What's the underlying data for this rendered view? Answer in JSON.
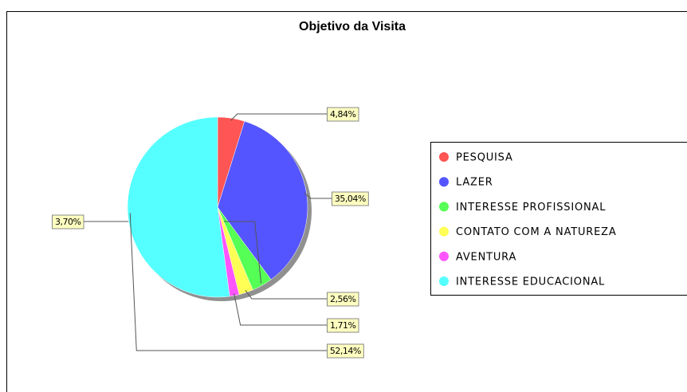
{
  "chart_data": {
    "type": "pie",
    "title": "Objetivo da Visita",
    "categories": [
      "PESQUISA",
      "LAZER",
      "INTERESSE PROFISSIONAL",
      "CONTATO COM A NATUREZA",
      "AVENTURA",
      "INTERESSE EDUCACIONAL"
    ],
    "values": [
      4.84,
      35.04,
      3.7,
      2.56,
      1.71,
      52.14
    ],
    "value_labels": [
      "4,84%",
      "35,04%",
      "3,70%",
      "2,56%",
      "1,71%",
      "52,14%"
    ],
    "colors": [
      "#ff5555",
      "#5555ff",
      "#55ff55",
      "#ffff55",
      "#ff55ff",
      "#55ffff"
    ]
  }
}
